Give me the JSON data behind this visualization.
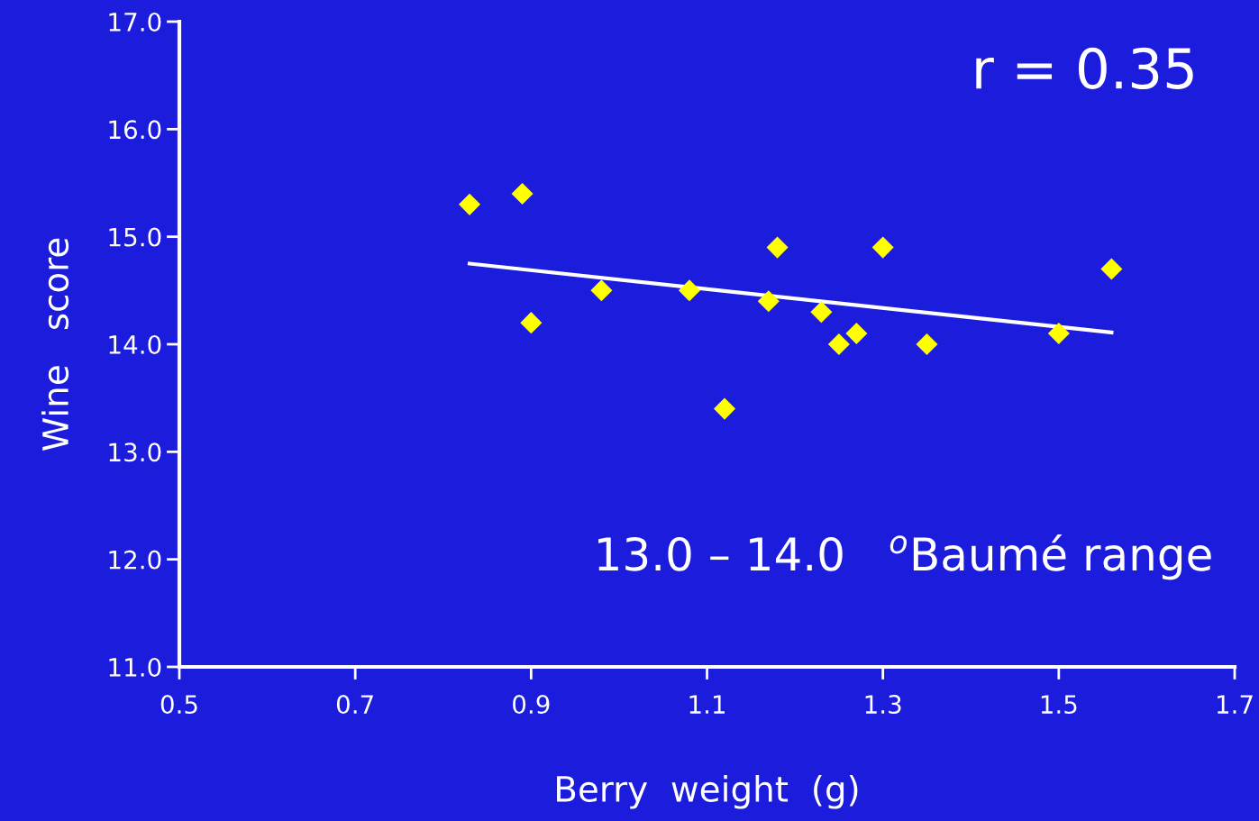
{
  "chart_data": {
    "type": "scatter",
    "xlabel": "Berry  weight  (g)",
    "ylabel": "Wine   score",
    "series": [
      {
        "color": "#ffff00",
        "marker": "diamond",
        "x": [
          0.83,
          0.89,
          0.9,
          0.98,
          1.08,
          1.12,
          1.17,
          1.18,
          1.23,
          1.25,
          1.27,
          1.3,
          1.35,
          1.5,
          1.56
        ],
        "values": [
          15.3,
          15.4,
          14.2,
          14.5,
          14.5,
          13.4,
          14.4,
          14.9,
          14.3,
          14.0,
          14.1,
          14.9,
          14.0,
          14.1,
          14.7
        ]
      },
      {
        "type": "line",
        "color": "#ffffff",
        "marker": "none",
        "line_style": "solid",
        "x": [
          0.83,
          1.56
        ],
        "values": [
          14.75,
          14.11
        ]
      }
    ],
    "xlim": [
      0.5,
      1.7
    ],
    "xticks": [
      0.5,
      0.7,
      0.9,
      1.1,
      1.3,
      1.5,
      1.7
    ],
    "ylim": [
      11,
      17
    ],
    "yticks": [
      {
        "value": 11,
        "label": "11.0"
      },
      {
        "value": 12,
        "label": "12.0"
      },
      {
        "value": 13,
        "label": "13.0"
      },
      {
        "value": 14,
        "label": "14.0"
      },
      {
        "value": 15,
        "label": "15.0"
      },
      {
        "value": 16,
        "label": "16.0"
      },
      {
        "value": 17,
        "label": "17.0"
      }
    ],
    "grid": false,
    "legend": false,
    "annotations": [
      "r = 0.35",
      "13.0 – 14.0   $^{o}$Baumé range"
    ]
  }
}
